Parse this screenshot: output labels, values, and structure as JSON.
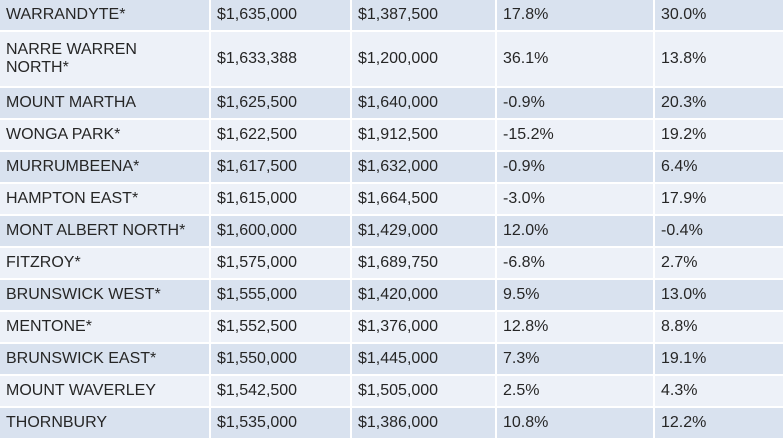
{
  "table": {
    "rows": [
      [
        "WARRANDYTE*",
        "$1,635,000",
        "$1,387,500",
        "17.8%",
        "30.0%"
      ],
      [
        "NARRE WARREN NORTH*",
        "$1,633,388",
        "$1,200,000",
        "36.1%",
        "13.8%"
      ],
      [
        "MOUNT MARTHA",
        "$1,625,500",
        "$1,640,000",
        "-0.9%",
        "20.3%"
      ],
      [
        "WONGA PARK*",
        "$1,622,500",
        "$1,912,500",
        "-15.2%",
        "19.2%"
      ],
      [
        "MURRUMBEENA*",
        "$1,617,500",
        "$1,632,000",
        "-0.9%",
        "6.4%"
      ],
      [
        "HAMPTON EAST*",
        "$1,615,000",
        "$1,664,500",
        "-3.0%",
        "17.9%"
      ],
      [
        "MONT ALBERT NORTH*",
        "$1,600,000",
        "$1,429,000",
        "12.0%",
        "-0.4%"
      ],
      [
        "FITZROY*",
        "$1,575,000",
        "$1,689,750",
        "-6.8%",
        "2.7%"
      ],
      [
        "BRUNSWICK WEST*",
        "$1,555,000",
        "$1,420,000",
        "9.5%",
        "13.0%"
      ],
      [
        "MENTONE*",
        "$1,552,500",
        "$1,376,000",
        "12.8%",
        "8.8%"
      ],
      [
        "BRUNSWICK EAST*",
        "$1,550,000",
        "$1,445,000",
        "7.3%",
        "19.1%"
      ],
      [
        "MOUNT WAVERLEY",
        "$1,542,500",
        "$1,505,000",
        "2.5%",
        "4.3%"
      ],
      [
        "THORNBURY",
        "$1,535,000",
        "$1,386,000",
        "10.8%",
        "12.2%"
      ]
    ]
  },
  "colors": {
    "row_dark": "#d9e2ef",
    "row_light": "#edf1f8",
    "text": "#262626"
  }
}
